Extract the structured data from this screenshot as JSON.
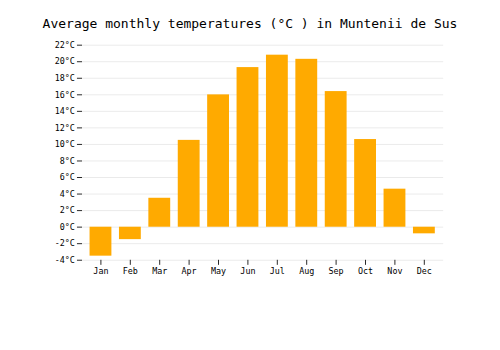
{
  "chart_data": {
    "type": "bar",
    "title": "Average monthly temperatures (°C ) in Muntenii de Sus",
    "categories": [
      "Jan",
      "Feb",
      "Mar",
      "Apr",
      "May",
      "Jun",
      "Jul",
      "Aug",
      "Sep",
      "Oct",
      "Nov",
      "Dec"
    ],
    "values": [
      -3.5,
      -1.5,
      3.5,
      10.5,
      16.0,
      19.3,
      20.8,
      20.3,
      16.4,
      10.6,
      4.6,
      -0.8
    ],
    "color": "#FFAA00",
    "ylim": [
      -4,
      22
    ],
    "yticks": [
      {
        "value": -4,
        "label": "-4°C"
      },
      {
        "value": -2,
        "label": "-2°C"
      },
      {
        "value": 0,
        "label": "0°C"
      },
      {
        "value": 2,
        "label": "2°C"
      },
      {
        "value": 4,
        "label": "4°C"
      },
      {
        "value": 6,
        "label": "6°C"
      },
      {
        "value": 8,
        "label": "8°C"
      },
      {
        "value": 10,
        "label": "10°C"
      },
      {
        "value": 12,
        "label": "12°C"
      },
      {
        "value": 14,
        "label": "14°C"
      },
      {
        "value": 16,
        "label": "16°C"
      },
      {
        "value": 18,
        "label": "18°C"
      },
      {
        "value": 20,
        "label": "20°C"
      },
      {
        "value": 22,
        "label": "22°C"
      }
    ],
    "grid": true
  }
}
